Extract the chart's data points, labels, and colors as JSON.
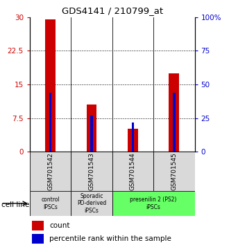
{
  "title": "GDS4141 / 210799_at",
  "samples": [
    "GSM701542",
    "GSM701543",
    "GSM701544",
    "GSM701545"
  ],
  "counts": [
    29.5,
    10.5,
    5.2,
    17.5
  ],
  "percentiles": [
    44,
    27,
    22,
    44
  ],
  "ylim_left": [
    0,
    30
  ],
  "ylim_right": [
    0,
    100
  ],
  "yticks_left": [
    0,
    7.5,
    15,
    22.5,
    30
  ],
  "yticks_right": [
    0,
    25,
    50,
    75,
    100
  ],
  "ytick_labels_left": [
    "0",
    "7.5",
    "15",
    "22.5",
    "30"
  ],
  "ytick_labels_right": [
    "0",
    "25",
    "50",
    "75",
    "100%"
  ],
  "bar_color": "#cc0000",
  "percentile_color": "#0000cc",
  "cell_line_groups": [
    {
      "label": "control\nIPSCs",
      "span": [
        0,
        1
      ],
      "color": "#d9d9d9"
    },
    {
      "label": "Sporadic\nPD-derived\niPSCs",
      "span": [
        1,
        2
      ],
      "color": "#d9d9d9"
    },
    {
      "label": "presenilin 2 (PS2)\niPSCs",
      "span": [
        2,
        4
      ],
      "color": "#66ff66"
    }
  ],
  "legend_count_label": "count",
  "legend_percentile_label": "percentile rank within the sample",
  "cell_line_label": "cell line",
  "red_bar_width": 0.25,
  "blue_bar_width": 0.06
}
